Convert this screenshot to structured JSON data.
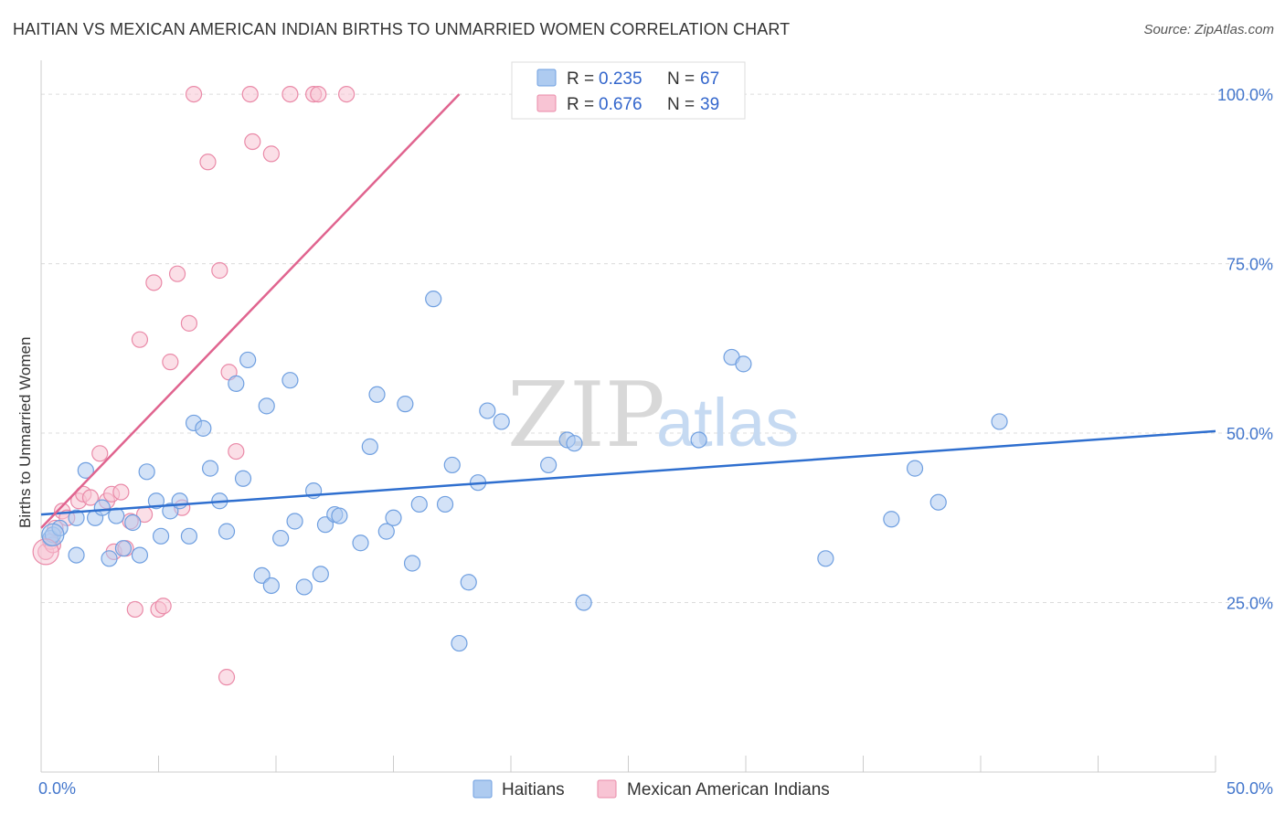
{
  "title": "HAITIAN VS MEXICAN AMERICAN INDIAN BIRTHS TO UNMARRIED WOMEN CORRELATION CHART",
  "source": "Source: ZipAtlas.com",
  "watermark": {
    "zip": "ZIP",
    "atlas": "atlas"
  },
  "legend": {
    "r_label": "R =",
    "n_label": "N =",
    "items": [
      {
        "name": "Haitians",
        "r": "0.235",
        "n": "67",
        "color": "#aecbf0",
        "stroke": "#6f9fe0"
      },
      {
        "name": "Mexican American Indians",
        "r": "0.676",
        "n": "39",
        "color": "#f8c4d4",
        "stroke": "#ea8aa8"
      }
    ]
  },
  "chart_data": {
    "type": "scatter",
    "title": "HAITIAN VS MEXICAN AMERICAN INDIAN BIRTHS TO UNMARRIED WOMEN CORRELATION CHART",
    "xlabel": "",
    "ylabel": "Births to Unmarried Women",
    "xlim": [
      0,
      50
    ],
    "ylim": [
      0,
      105
    ],
    "x_tick_labels": [
      "0.0%",
      "50.0%"
    ],
    "y_ticks": [
      25,
      50,
      75,
      100
    ],
    "y_tick_labels": [
      "25.0%",
      "50.0%",
      "75.0%",
      "100.0%"
    ],
    "grid": true,
    "legend_placement": "top-center",
    "series": [
      {
        "name": "Haitians",
        "color": "#aecbf0",
        "stroke": "#6f9fe0",
        "line_color": "#2f6fcf",
        "trend": {
          "x": [
            0,
            50
          ],
          "y": [
            38.0,
            50.3
          ]
        },
        "points": [
          [
            0.4,
            34.5
          ],
          [
            0.5,
            35.0
          ],
          [
            0.8,
            36.0
          ],
          [
            1.5,
            37.5
          ],
          [
            1.5,
            32.0
          ],
          [
            1.9,
            44.5
          ],
          [
            2.3,
            37.5
          ],
          [
            2.6,
            39.0
          ],
          [
            2.9,
            31.5
          ],
          [
            3.2,
            37.8
          ],
          [
            3.5,
            33.0
          ],
          [
            3.9,
            36.8
          ],
          [
            4.2,
            32.0
          ],
          [
            4.5,
            44.3
          ],
          [
            4.9,
            40.0
          ],
          [
            5.1,
            34.8
          ],
          [
            5.5,
            38.5
          ],
          [
            5.9,
            40.0
          ],
          [
            6.3,
            34.8
          ],
          [
            6.5,
            51.5
          ],
          [
            6.9,
            50.7
          ],
          [
            7.2,
            44.8
          ],
          [
            7.6,
            40.0
          ],
          [
            7.9,
            35.5
          ],
          [
            8.3,
            57.3
          ],
          [
            8.6,
            43.3
          ],
          [
            8.8,
            60.8
          ],
          [
            9.4,
            29.0
          ],
          [
            9.6,
            54.0
          ],
          [
            9.8,
            27.5
          ],
          [
            10.2,
            34.5
          ],
          [
            10.6,
            57.8
          ],
          [
            10.8,
            37.0
          ],
          [
            11.2,
            27.3
          ],
          [
            11.6,
            41.5
          ],
          [
            11.9,
            29.2
          ],
          [
            12.1,
            36.5
          ],
          [
            12.5,
            38.0
          ],
          [
            12.7,
            37.8
          ],
          [
            13.6,
            33.8
          ],
          [
            14.0,
            48.0
          ],
          [
            14.3,
            55.7
          ],
          [
            14.7,
            35.5
          ],
          [
            15.0,
            37.5
          ],
          [
            15.5,
            54.3
          ],
          [
            15.8,
            30.8
          ],
          [
            16.1,
            39.5
          ],
          [
            16.7,
            69.8
          ],
          [
            17.2,
            39.5
          ],
          [
            17.5,
            45.3
          ],
          [
            17.8,
            19.0
          ],
          [
            18.2,
            28.0
          ],
          [
            18.6,
            42.7
          ],
          [
            19.0,
            53.3
          ],
          [
            19.6,
            51.7
          ],
          [
            21.6,
            45.3
          ],
          [
            22.4,
            49.0
          ],
          [
            22.7,
            48.5
          ],
          [
            23.1,
            25.0
          ],
          [
            28.0,
            49.0
          ],
          [
            29.4,
            61.2
          ],
          [
            29.9,
            60.2
          ],
          [
            33.4,
            31.5
          ],
          [
            36.2,
            37.3
          ],
          [
            37.2,
            44.8
          ],
          [
            38.2,
            39.8
          ],
          [
            40.8,
            51.7
          ]
        ]
      },
      {
        "name": "Mexican American Indians",
        "color": "#f8c4d4",
        "stroke": "#ea8aa8",
        "line_color": "#e0648f",
        "trend": {
          "x": [
            0,
            17.8
          ],
          "y": [
            36.0,
            100.0
          ]
        },
        "points": [
          [
            0.2,
            32.5
          ],
          [
            0.4,
            34.0
          ],
          [
            0.5,
            33.5
          ],
          [
            0.6,
            36.0
          ],
          [
            0.9,
            38.5
          ],
          [
            1.1,
            37.5
          ],
          [
            1.6,
            40.0
          ],
          [
            1.8,
            41.0
          ],
          [
            2.1,
            40.5
          ],
          [
            2.5,
            47.0
          ],
          [
            2.8,
            40.0
          ],
          [
            3.0,
            41.0
          ],
          [
            3.1,
            32.5
          ],
          [
            3.4,
            41.3
          ],
          [
            3.6,
            33.0
          ],
          [
            3.8,
            37.0
          ],
          [
            4.0,
            24.0
          ],
          [
            4.2,
            63.8
          ],
          [
            4.4,
            38.0
          ],
          [
            4.8,
            72.2
          ],
          [
            5.0,
            24.0
          ],
          [
            5.2,
            24.5
          ],
          [
            5.5,
            60.5
          ],
          [
            5.8,
            73.5
          ],
          [
            6.0,
            39.0
          ],
          [
            6.3,
            66.2
          ],
          [
            6.5,
            100.0
          ],
          [
            7.1,
            90.0
          ],
          [
            7.6,
            74.0
          ],
          [
            7.9,
            14.0
          ],
          [
            8.0,
            59.0
          ],
          [
            8.3,
            47.3
          ],
          [
            8.9,
            100.0
          ],
          [
            9.0,
            93.0
          ],
          [
            9.8,
            91.2
          ],
          [
            10.6,
            100.0
          ],
          [
            11.6,
            100.0
          ],
          [
            11.8,
            100.0
          ],
          [
            13.0,
            100.0
          ]
        ]
      }
    ]
  }
}
